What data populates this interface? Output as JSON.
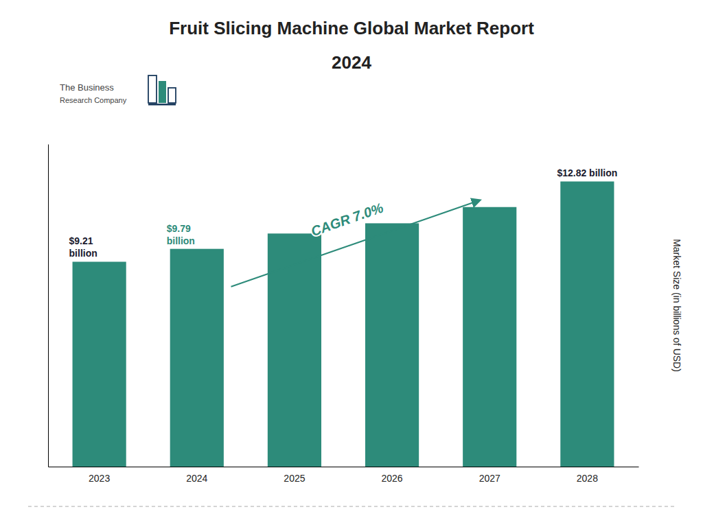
{
  "chart_data": {
    "type": "bar",
    "title": "Fruit Slicing Machine Global Market Report",
    "subtitle": "2024",
    "y_label": "Market Size (in billions of USD)",
    "categories": [
      "2023",
      "2024",
      "2025",
      "2026",
      "2027",
      "2028"
    ],
    "values": [
      9.21,
      9.79,
      10.48,
      10.94,
      11.67,
      12.82
    ],
    "color": "#2d8b7a",
    "ylim": [
      0,
      14.5
    ],
    "grid": false,
    "tick_labels": "x",
    "annotations": [
      {
        "text": "$9.21\nbillion",
        "x": "2023",
        "color": "#1a1a2e"
      },
      {
        "text": "$9.79\nbillion",
        "x": "2024",
        "color": "#2d8b7a"
      },
      {
        "text": "$12.82 billion",
        "x": "2028",
        "color": "#1a1a2e"
      },
      {
        "text": "CAGR 7.0%",
        "color": "#2d8b7a",
        "arrow": {
          "from": "2024",
          "to": "2027"
        }
      }
    ],
    "logo": [
      "The Business",
      "Research Company"
    ]
  }
}
